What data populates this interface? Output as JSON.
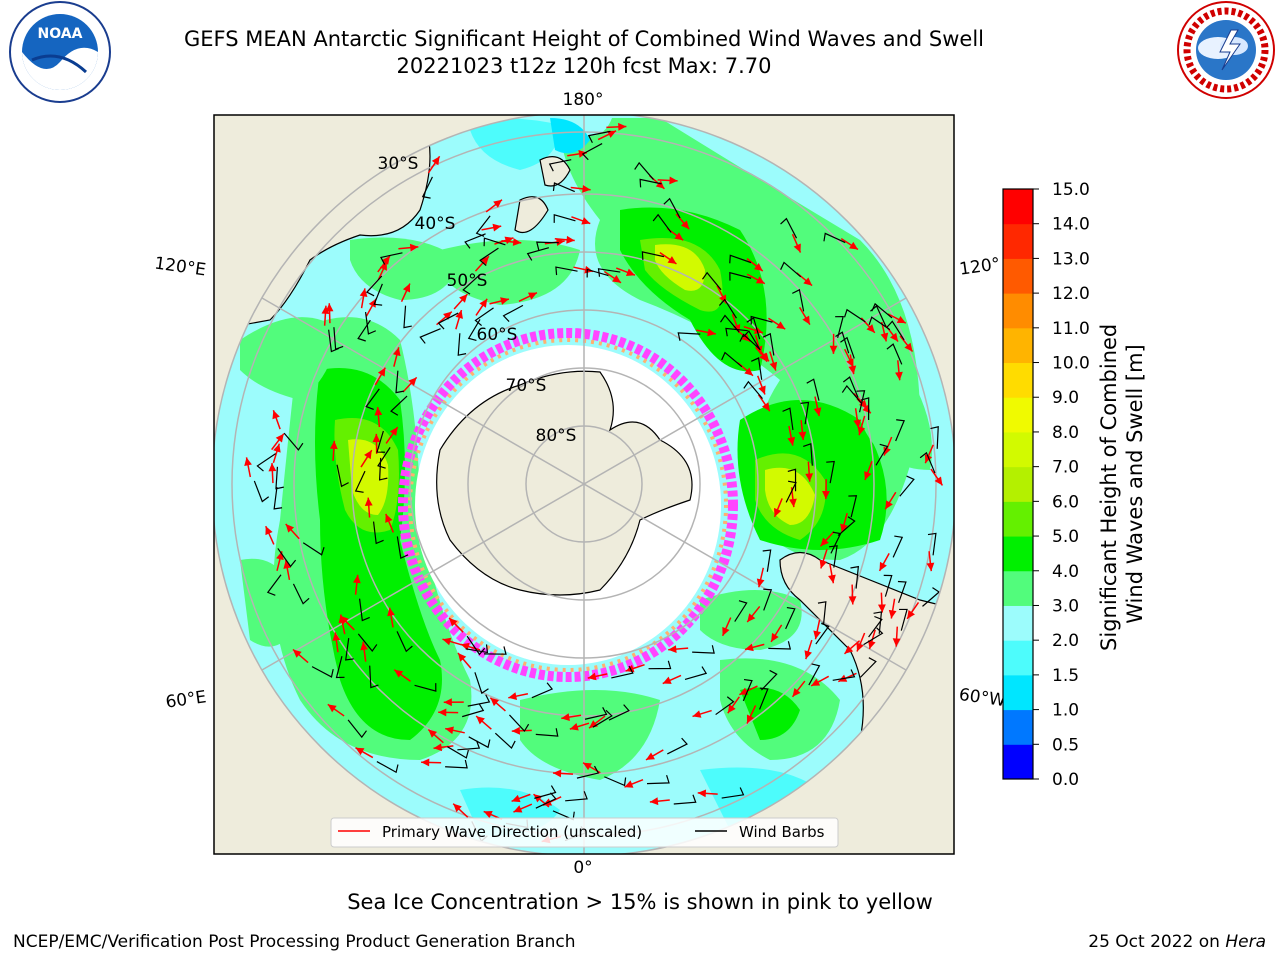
{
  "header": {
    "title_line1": "GEFS MEAN Antarctic Significant Height of Combined Wind Waves and Swell",
    "title_line2": "20221023 t12z 120h fcst   Max: 7.70"
  },
  "logos": {
    "left": "noaa-logo",
    "right": "nws-logo"
  },
  "map": {
    "projection": "south-polar-stereographic",
    "longitude_labels": [
      "180°",
      "120°E",
      "120°",
      "60°E",
      "60°W",
      "0°"
    ],
    "latitude_labels": [
      "30°S",
      "40°S",
      "50°S",
      "60°S",
      "70°S",
      "80°S"
    ],
    "colors": {
      "land": "#eeecdc",
      "ice_free_ocean": "#9cfcfc",
      "arrow": "#ff0000",
      "barb": "#000000"
    }
  },
  "legend": {
    "items": [
      {
        "label": "Primary Wave Direction (unscaled)",
        "color": "#ff0000"
      },
      {
        "label": "Wind Barbs",
        "color": "#000000"
      }
    ]
  },
  "colorbar": {
    "title": "Significant Height of Combined\nWind Waves and Swell [m]",
    "tick_labels": [
      "0.0",
      "0.5",
      "1.0",
      "1.5",
      "2.0",
      "3.0",
      "4.0",
      "5.0",
      "6.0",
      "7.0",
      "8.0",
      "9.0",
      "10.0",
      "11.0",
      "12.0",
      "13.0",
      "14.0",
      "15.0"
    ],
    "colors": [
      "#0000ff",
      "#0078ff",
      "#00e6ff",
      "#4dfcfc",
      "#9cfcfc",
      "#52fc7c",
      "#00f000",
      "#64f000",
      "#b4f000",
      "#d2fa00",
      "#f0fa00",
      "#ffdc00",
      "#ffb400",
      "#ff8c00",
      "#ff5a00",
      "#ff2800",
      "#ff0000"
    ]
  },
  "notes": {
    "ice": "Sea Ice Concentration > 15% is shown in pink to yellow",
    "producer": "NCEP/EMC/Verification Post Processing Product Generation Branch",
    "date": "25 Oct 2022 on ",
    "host": "Hera"
  }
}
